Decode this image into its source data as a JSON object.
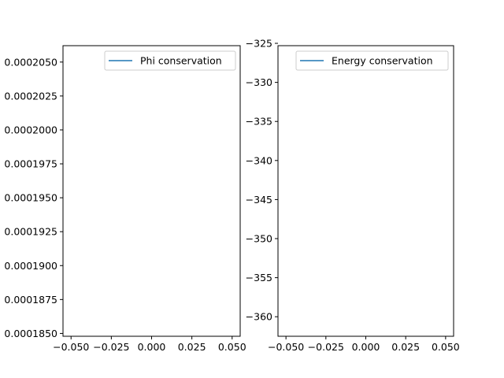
{
  "chart_data": [
    {
      "type": "line",
      "x": [],
      "series": [
        {
          "name": "Phi conservation",
          "values": [],
          "color": "#1f77b4"
        }
      ],
      "title": "",
      "xlabel": "",
      "ylabel": "",
      "xlim": [
        -0.055,
        0.055
      ],
      "ylim": [
        0.000184792,
        0.000206208
      ],
      "xticks": [
        -0.05,
        -0.025,
        0.0,
        0.025,
        0.05
      ],
      "xtick_labels": [
        "−0.050",
        "−0.025",
        "0.000",
        "0.025",
        "0.050"
      ],
      "yticks": [
        0.000185,
        0.0001875,
        0.00019,
        0.0001925,
        0.000195,
        0.0001975,
        0.0002,
        0.0002025,
        0.000205
      ],
      "ytick_labels": [
        "0.0001850",
        "0.0001875",
        "0.0001900",
        "0.0001925",
        "0.0001950",
        "0.0001975",
        "0.0002000",
        "0.0002025",
        "0.0002050"
      ],
      "legend_position": "upper right",
      "grid": false
    },
    {
      "type": "line",
      "x": [],
      "series": [
        {
          "name": "Energy conservation",
          "values": [],
          "color": "#1f77b4"
        }
      ],
      "title": "",
      "xlabel": "",
      "ylabel": "",
      "xlim": [
        -0.055,
        0.055
      ],
      "ylim": [
        -362.5,
        -325.3
      ],
      "xticks": [
        -0.05,
        -0.025,
        0.0,
        0.025,
        0.05
      ],
      "xtick_labels": [
        "−0.050",
        "−0.025",
        "0.000",
        "0.025",
        "0.050"
      ],
      "yticks": [
        -360,
        -355,
        -350,
        -345,
        -340,
        -335,
        -330,
        -325
      ],
      "ytick_labels": [
        "−360",
        "−355",
        "−350",
        "−345",
        "−340",
        "−335",
        "−330",
        "−325"
      ],
      "legend_position": "upper right",
      "grid": false
    }
  ]
}
